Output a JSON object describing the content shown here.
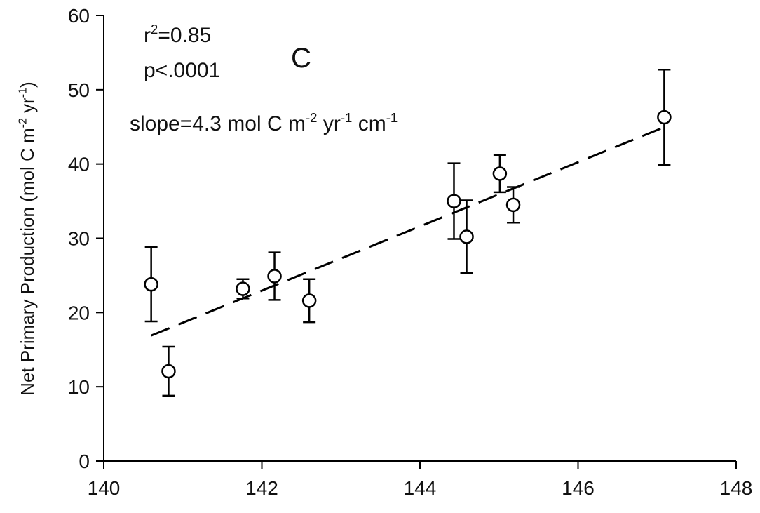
{
  "chart_data": {
    "type": "scatter",
    "panel_label": "C",
    "y_label": [
      {
        "text": "Net Primary Production (mol C m"
      },
      {
        "sup": "-2"
      },
      {
        "text": " yr"
      },
      {
        "sup": "-1"
      },
      {
        "text": ")"
      }
    ],
    "annotations": [
      [
        {
          "text": "r"
        },
        {
          "sup": "2"
        },
        {
          "text": "=0.85"
        }
      ],
      [
        {
          "text": "p<.0001"
        }
      ],
      [
        {
          "text": "slope=4.3 mol C m"
        },
        {
          "sup": "-2"
        },
        {
          "text": " yr"
        },
        {
          "sup": "-1"
        },
        {
          "text": " cm"
        },
        {
          "sup": "-1"
        }
      ]
    ],
    "x": [
      140.6,
      140.82,
      141.76,
      142.16,
      142.6,
      144.43,
      144.59,
      145.01,
      145.18,
      147.09
    ],
    "y": [
      23.8,
      12.1,
      23.2,
      24.9,
      21.6,
      35.0,
      30.2,
      38.7,
      34.5,
      46.3
    ],
    "err": [
      5.0,
      3.3,
      1.3,
      3.2,
      2.9,
      5.1,
      4.9,
      2.5,
      2.4,
      6.4
    ],
    "fit": {
      "x": [
        140.6,
        147.1
      ],
      "y": [
        16.9,
        45.0
      ]
    },
    "color": "#000000",
    "xlim": [
      140,
      148
    ],
    "xticks": [
      140,
      142,
      144,
      146,
      148
    ],
    "ylim": [
      0,
      60
    ],
    "yticks": [
      0,
      10,
      20,
      30,
      40,
      50,
      60
    ],
    "grid": false
  }
}
